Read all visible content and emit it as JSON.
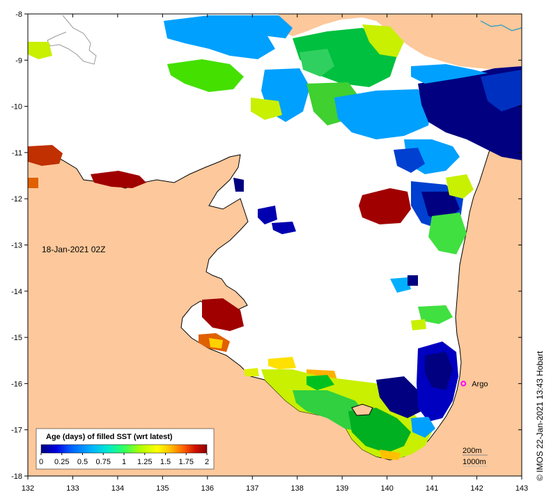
{
  "map": {
    "date_label": "18-Jan-2021 02Z",
    "credit": "© IMOS 22-Jan-2021 13:43 Hobart",
    "x_ticks": [
      "132",
      "133",
      "134",
      "135",
      "136",
      "137",
      "138",
      "139",
      "140",
      "141",
      "142",
      "143"
    ],
    "y_ticks": [
      "-8",
      "-9",
      "-10",
      "-11",
      "-12",
      "-13",
      "-14",
      "-15",
      "-16",
      "-17",
      "-18"
    ],
    "lon_range": [
      132,
      143
    ],
    "lat_range": [
      -18,
      -8
    ],
    "argo": {
      "label": "Argo",
      "lon": 141.7,
      "lat": -16.0
    },
    "contours": {
      "line1": "200m",
      "line2": "1000m"
    },
    "legend": {
      "title": "Age (days) of filled SST (wrt latest)",
      "ticks": [
        "0",
        "0.25",
        "0.5",
        "0.75",
        "1",
        "1.25",
        "1.5",
        "1.75",
        "2"
      ],
      "colors": [
        "#000080",
        "#0000d0",
        "#0050ff",
        "#00a0ff",
        "#00e0e0",
        "#40ff80",
        "#a0ff00",
        "#ffff00",
        "#ffc000",
        "#ff6000",
        "#e01000",
        "#900000"
      ]
    },
    "colors": {
      "land": "#fdc89b",
      "ocean": "#ffffff",
      "coast": "#000000",
      "argo_marker": "#ff00ff"
    }
  }
}
